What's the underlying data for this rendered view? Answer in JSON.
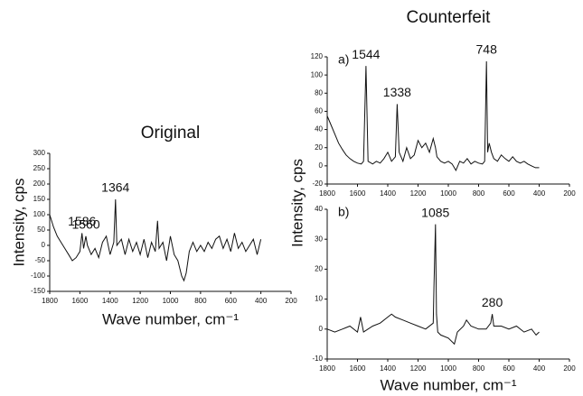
{
  "chart_data": [
    {
      "type": "line",
      "title": "Original",
      "xlabel": "Wave number, cm⁻¹",
      "ylabel": "Intensity, cps",
      "xlim": [
        1800,
        200
      ],
      "xticks": [
        1800,
        1600,
        1400,
        1200,
        1000,
        800,
        600,
        400,
        200
      ],
      "ylim": [
        -150,
        300
      ],
      "yticks": [
        -150,
        -100,
        -50,
        0,
        50,
        100,
        150,
        200,
        250,
        300
      ],
      "series": [
        {
          "color": "#111111",
          "x": [
            1800,
            1775,
            1750,
            1725,
            1700,
            1675,
            1650,
            1625,
            1600,
            1586,
            1575,
            1560,
            1550,
            1525,
            1500,
            1475,
            1450,
            1425,
            1400,
            1375,
            1364,
            1355,
            1325,
            1300,
            1275,
            1250,
            1225,
            1200,
            1175,
            1150,
            1125,
            1100,
            1085,
            1075,
            1050,
            1025,
            1000,
            975,
            950,
            925,
            910,
            895,
            875,
            850,
            825,
            800,
            775,
            750,
            725,
            700,
            675,
            650,
            625,
            600,
            575,
            550,
            525,
            500,
            475,
            450,
            425,
            400
          ],
          "values": [
            100,
            60,
            30,
            10,
            -10,
            -30,
            -50,
            -40,
            -20,
            40,
            -10,
            30,
            0,
            -30,
            -10,
            -40,
            10,
            30,
            -30,
            10,
            150,
            0,
            20,
            -30,
            20,
            -20,
            10,
            -30,
            20,
            -40,
            10,
            -20,
            80,
            -10,
            10,
            -50,
            30,
            -30,
            -50,
            -100,
            -115,
            -90,
            -20,
            10,
            -20,
            0,
            -20,
            10,
            -10,
            20,
            30,
            -10,
            20,
            -20,
            40,
            -10,
            10,
            -20,
            0,
            20,
            -30,
            20
          ]
        }
      ],
      "annotations": [
        {
          "text": "1586",
          "x": 1586
        },
        {
          "text": "1560",
          "x": 1560
        },
        {
          "text": "1364",
          "x": 1364
        }
      ]
    },
    {
      "type": "line",
      "title": "Counterfeit",
      "panel_label": "a)",
      "ylabel": "Intensity, cps",
      "xlim": [
        1800,
        200
      ],
      "xticks": [
        1800,
        1600,
        1400,
        1200,
        1000,
        800,
        600,
        400,
        200
      ],
      "ylim": [
        -20,
        120
      ],
      "yticks": [
        -20,
        0,
        20,
        40,
        60,
        80,
        100,
        120
      ],
      "series": [
        {
          "color": "#111111",
          "x": [
            1800,
            1775,
            1750,
            1725,
            1700,
            1675,
            1650,
            1625,
            1600,
            1575,
            1560,
            1544,
            1530,
            1500,
            1475,
            1450,
            1425,
            1400,
            1375,
            1350,
            1338,
            1325,
            1300,
            1275,
            1250,
            1225,
            1200,
            1175,
            1150,
            1125,
            1100,
            1085,
            1075,
            1050,
            1025,
            1000,
            975,
            950,
            925,
            900,
            875,
            850,
            825,
            800,
            775,
            760,
            748,
            740,
            730,
            715,
            700,
            675,
            650,
            625,
            600,
            575,
            550,
            525,
            500,
            475,
            450,
            425,
            400
          ],
          "values": [
            55,
            45,
            35,
            25,
            18,
            12,
            8,
            5,
            3,
            2,
            5,
            110,
            5,
            2,
            5,
            3,
            8,
            15,
            5,
            10,
            68,
            15,
            5,
            20,
            8,
            12,
            28,
            20,
            25,
            15,
            30,
            20,
            10,
            5,
            3,
            5,
            2,
            -5,
            5,
            3,
            8,
            2,
            5,
            3,
            2,
            5,
            115,
            15,
            25,
            15,
            8,
            5,
            12,
            8,
            5,
            10,
            5,
            3,
            5,
            2,
            0,
            -2,
            -2
          ]
        }
      ],
      "annotations": [
        {
          "text": "1544",
          "x": 1544
        },
        {
          "text": "1338",
          "x": 1338
        },
        {
          "text": "748",
          "x": 748
        }
      ]
    },
    {
      "type": "line",
      "panel_label": "b)",
      "xlabel": "Wave number, cm⁻¹",
      "xlim": [
        1800,
        200
      ],
      "xticks": [
        1800,
        1600,
        1400,
        1200,
        1000,
        800,
        600,
        400,
        200
      ],
      "ylim": [
        -10,
        40
      ],
      "yticks": [
        -10,
        0,
        10,
        20,
        30,
        40
      ],
      "series": [
        {
          "color": "#111111",
          "x": [
            1800,
            1750,
            1700,
            1650,
            1600,
            1580,
            1560,
            1500,
            1450,
            1400,
            1375,
            1350,
            1300,
            1250,
            1200,
            1150,
            1100,
            1095,
            1085,
            1078,
            1070,
            1050,
            1000,
            960,
            940,
            900,
            880,
            850,
            800,
            750,
            720,
            710,
            700,
            650,
            600,
            550,
            500,
            450,
            420,
            400
          ],
          "values": [
            0,
            -1,
            0,
            1,
            -1,
            4,
            -1,
            1,
            2,
            4,
            5,
            4,
            3,
            2,
            1,
            0,
            2,
            14,
            35,
            5,
            -1,
            -2,
            -3,
            -5,
            -1,
            1,
            3,
            1,
            0,
            0,
            2,
            5,
            1,
            1,
            0,
            1,
            -1,
            0,
            -2,
            -1
          ]
        }
      ],
      "annotations": [
        {
          "text": "1085",
          "x": 1085
        },
        {
          "text": "280",
          "x": 710
        }
      ]
    }
  ]
}
